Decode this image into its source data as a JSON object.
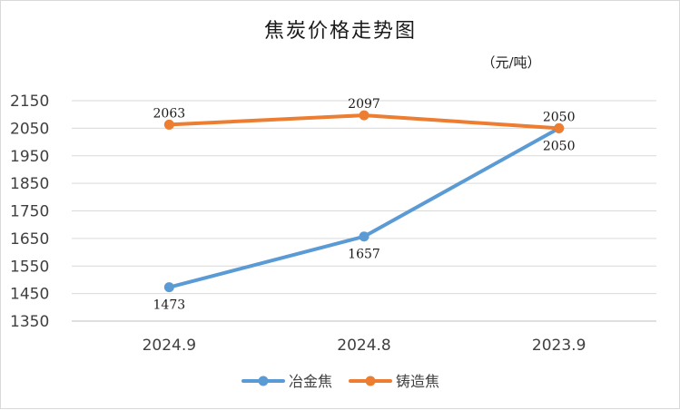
{
  "chart_data": {
    "type": "line",
    "title": "焦炭价格走势图",
    "unit": "（元/吨）",
    "categories": [
      "2024.9",
      "2024.8",
      "2023.9"
    ],
    "ylim": [
      1350,
      2150
    ],
    "yticks": [
      1350,
      1450,
      1550,
      1650,
      1750,
      1850,
      1950,
      2050,
      2150
    ],
    "grid": true,
    "legend_position": "bottom",
    "series": [
      {
        "name": "冶金焦",
        "color": "#5b9bd5",
        "values": [
          1473,
          1657,
          2050
        ],
        "labels": [
          "1473",
          "1657",
          "2050"
        ]
      },
      {
        "name": "铸造焦",
        "color": "#ed7d31",
        "values": [
          2063,
          2097,
          2050
        ],
        "labels": [
          "2063",
          "2097",
          "2050"
        ]
      }
    ]
  }
}
